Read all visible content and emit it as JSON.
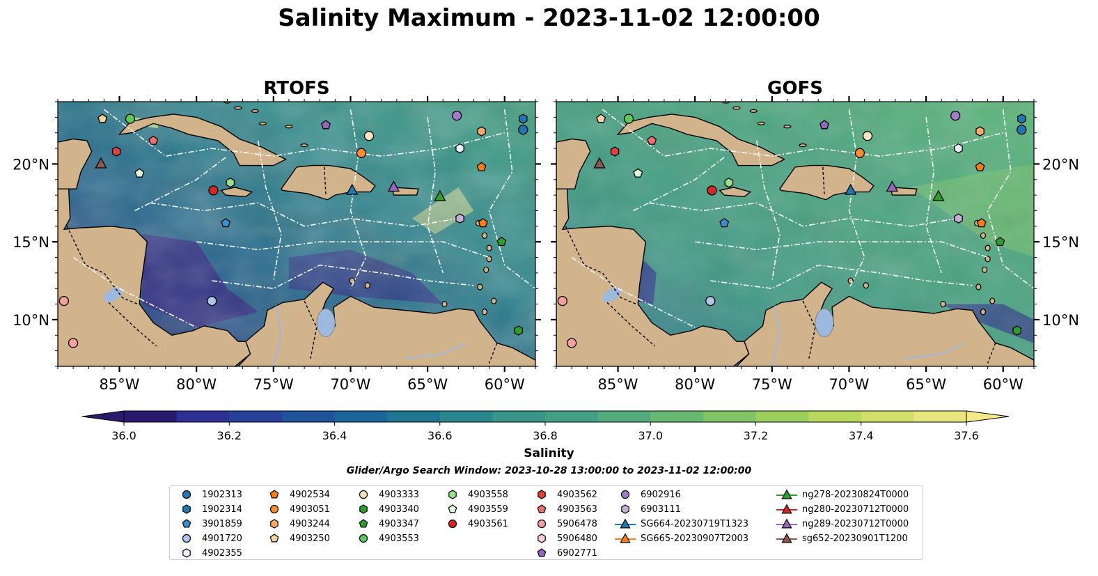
{
  "title": "Salinity Maximum - 2023-11-02 12:00:00",
  "panels": [
    {
      "name": "RTOFS"
    },
    {
      "name": "GOFS"
    }
  ],
  "axes": {
    "x_ticks": [
      "85°W",
      "80°W",
      "75°W",
      "70°W",
      "65°W",
      "60°W"
    ],
    "y_ticks": [
      "20°N",
      "15°N",
      "10°N"
    ]
  },
  "colors": {
    "land": "#D2B48C",
    "lakes": "#9DB9E0",
    "colormap_low": "#2A1A6B",
    "colormap_high": "#F4E888"
  },
  "colorbar": {
    "label": "Salinity",
    "ticks": [
      "36.0",
      "36.2",
      "36.4",
      "36.6",
      "36.8",
      "37.0",
      "37.2",
      "37.4",
      "37.6"
    ],
    "min": 36.0,
    "max": 37.6
  },
  "search_window": "Glider/Argo Search Window: 2023-10-28 13:00:00 to 2023-11-02 12:00:00",
  "legend": [
    {
      "label": "1902313",
      "marker": "circle",
      "color": "#1f77b4"
    },
    {
      "label": "1902314",
      "marker": "hexagon",
      "color": "#1f77b4"
    },
    {
      "label": "3901859",
      "marker": "pentagon",
      "color": "#3a8fd1"
    },
    {
      "label": "4901720",
      "marker": "circle",
      "color": "#aec7e8"
    },
    {
      "label": "4902355",
      "marker": "hexagon",
      "color": "#e8f1fb"
    },
    {
      "label": "4902534",
      "marker": "pentagon",
      "color": "#ff7f0e"
    },
    {
      "label": "4903051",
      "marker": "circle",
      "color": "#ff8c2a"
    },
    {
      "label": "4903244",
      "marker": "hexagon",
      "color": "#ffaa66"
    },
    {
      "label": "4903250",
      "marker": "pentagon",
      "color": "#ffd0a0"
    },
    {
      "label": "4903333",
      "marker": "circle",
      "color": "#ffe4c4"
    },
    {
      "label": "4903340",
      "marker": "hexagon",
      "color": "#2ca02c"
    },
    {
      "label": "4903347",
      "marker": "pentagon",
      "color": "#2ca02c"
    },
    {
      "label": "4903553",
      "marker": "circle",
      "color": "#5cc85c"
    },
    {
      "label": "4903558",
      "marker": "hexagon",
      "color": "#98df8a"
    },
    {
      "label": "4903559",
      "marker": "pentagon",
      "color": "#e0f8d8"
    },
    {
      "label": "4903561",
      "marker": "circle",
      "color": "#d62728"
    },
    {
      "label": "4903562",
      "marker": "hexagon",
      "color": "#e0403a"
    },
    {
      "label": "4903563",
      "marker": "pentagon",
      "color": "#f07070"
    },
    {
      "label": "5906478",
      "marker": "circle",
      "color": "#f8a0a0"
    },
    {
      "label": "5906480",
      "marker": "hexagon",
      "color": "#fcd0d0"
    },
    {
      "label": "6902771",
      "marker": "pentagon",
      "color": "#9467bd"
    },
    {
      "label": "6902916",
      "marker": "circle",
      "color": "#a07ccd"
    },
    {
      "label": "6903111",
      "marker": "hexagon",
      "color": "#c5b0d5"
    },
    {
      "label": "SG664-20230719T1323",
      "marker": "triangle-line",
      "color": "#1f77b4"
    },
    {
      "label": "SG665-20230907T2003",
      "marker": "triangle-line",
      "color": "#ff7f0e"
    },
    {
      "label": "ng278-20230824T0000",
      "marker": "triangle-line",
      "color": "#2ca02c"
    },
    {
      "label": "ng280-20230712T0000",
      "marker": "triangle-line",
      "color": "#d62728"
    },
    {
      "label": "ng289-20230712T0000",
      "marker": "triangle-line",
      "color": "#9467bd"
    },
    {
      "label": "sg652-20230901T1200",
      "marker": "triangle-line",
      "color": "#8c564b"
    }
  ]
}
